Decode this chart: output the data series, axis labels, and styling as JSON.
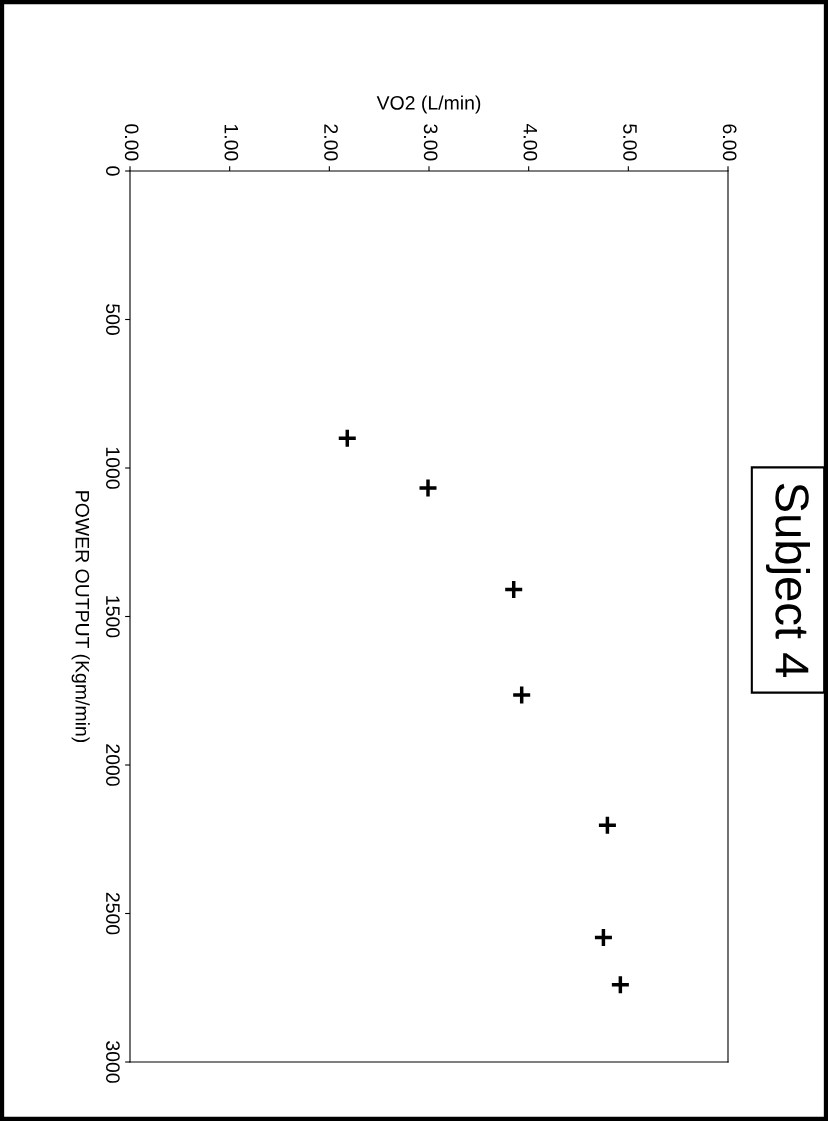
{
  "chart_data": {
    "type": "scatter",
    "title": "Subject 4",
    "xlabel": "VO2 (L/min)",
    "ylabel": "POWER OUTPUT (Kgm/min)",
    "x": [
      2.18,
      2.99,
      3.85,
      3.93,
      4.79,
      4.75,
      4.92
    ],
    "values": [
      900,
      1067,
      1409,
      1764,
      2203,
      2581,
      2740
    ],
    "color": "#000000",
    "marker": "cross",
    "ylim": [
      3000,
      0
    ],
    "yticks": [
      0,
      500,
      1000,
      1500,
      2000,
      2500,
      3000
    ],
    "xlim": [
      0,
      6
    ],
    "xticks": [
      {
        "value": 0,
        "label": "0.00"
      },
      {
        "value": 1,
        "label": "1.00"
      },
      {
        "value": 2,
        "label": "2.00"
      },
      {
        "value": 3,
        "label": "3.00"
      },
      {
        "value": 4,
        "label": "4.00"
      },
      {
        "value": 5,
        "label": "5.00"
      },
      {
        "value": 6,
        "label": "6.00"
      }
    ]
  }
}
